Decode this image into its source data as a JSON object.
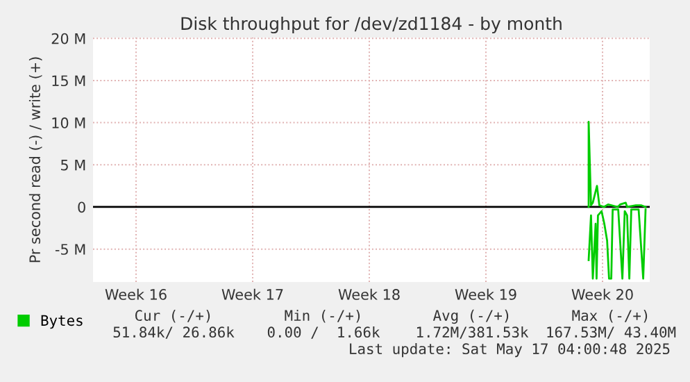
{
  "chart_data": {
    "type": "line",
    "title": "Disk throughput for /dev/zd1184 - by month",
    "ylabel": "Pr second read (-) / write (+)",
    "xlim": [
      "2025-04-13T18:00",
      "2025-05-17T04:00"
    ],
    "xticks": [
      {
        "value": "2025-04-16T08:00",
        "label": "Week 16"
      },
      {
        "value": "2025-04-23T08:00",
        "label": "Week 17"
      },
      {
        "value": "2025-04-30T08:00",
        "label": "Week 18"
      },
      {
        "value": "2025-05-07T08:00",
        "label": "Week 19"
      },
      {
        "value": "2025-05-14T08:00",
        "label": "Week 20"
      }
    ],
    "ylim": [
      -8.9,
      20.1
    ],
    "yticks": [
      {
        "value": -5,
        "label": "-5 M"
      },
      {
        "value": 0,
        "label": "0"
      },
      {
        "value": 5,
        "label": "5 M"
      },
      {
        "value": 10,
        "label": "10 M"
      },
      {
        "value": 15,
        "label": "15 M"
      },
      {
        "value": 20,
        "label": "20 M"
      }
    ],
    "grid": true,
    "legend": "bottom left",
    "ref_lines": [
      {
        "axis": "y",
        "value": 0,
        "color": "#000000"
      }
    ],
    "series": [
      {
        "name": "Bytes",
        "color": "#00cc00",
        "x": [
          "2025-05-13T12:00",
          "2025-05-13T12:00",
          "2025-05-13T15:24",
          "2025-05-13T18:00",
          "2025-05-14T00:00",
          "2025-05-14T03:24",
          "2025-05-14T10:00",
          "2025-05-14T16:00",
          "2025-05-15T06:00",
          "2025-05-15T09:24",
          "2025-05-15T17:24",
          "2025-05-15T19:24",
          "2025-05-16T08:00",
          "2025-05-16T15:24",
          "2025-05-16T22:00"
        ],
        "values": [
          0,
          10.1,
          0.2,
          0.5,
          2.5,
          0.2,
          0,
          0.3,
          0,
          0.3,
          0.5,
          0,
          0.2,
          0.2,
          0
        ]
      },
      {
        "color": "#00cc00",
        "x": [
          "2025-05-13T12:00",
          "2025-05-13T15:24",
          "2025-05-13T18:00",
          "2025-05-13T22:00",
          "2025-05-13T23:24",
          "2025-05-14T01:24",
          "2025-05-14T06:36",
          "2025-05-14T10:36",
          "2025-05-14T14:36",
          "2025-05-14T17:24",
          "2025-05-14T20:36",
          "2025-05-14T22:36",
          "2025-05-15T06:36",
          "2025-05-15T12:36",
          "2025-05-15T16:00",
          "2025-05-15T19:24",
          "2025-05-15T22:36",
          "2025-05-16T01:24",
          "2025-05-16T12:00",
          "2025-05-16T18:36",
          "2025-05-16T22:00"
        ],
        "values": [
          -6.3,
          -1,
          -8.5,
          -2,
          -8.5,
          -1,
          -0.5,
          -2,
          -4,
          -8.5,
          -8.5,
          -0.3,
          -0.3,
          -8.5,
          -0.5,
          -1,
          -8.5,
          -0.3,
          -0.3,
          -8.5,
          -0.3
        ]
      }
    ],
    "annotations": [
      "Cur (-/+)",
      "Min (-/+)",
      "Avg (-/+)",
      "Max (-/+)",
      "51.84k/ 26.86k",
      "0.00 /  1.66k",
      "1.72M/381.53k",
      "167.53M/ 43.40M",
      "Last update: Sat May 17 04:00:48 2025"
    ]
  }
}
